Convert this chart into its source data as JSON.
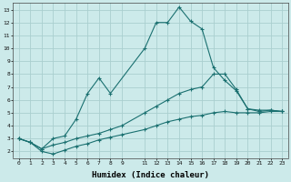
{
  "xlabel": "Humidex (Indice chaleur)",
  "xlim": [
    -0.5,
    23.5
  ],
  "ylim": [
    1.5,
    13.5
  ],
  "yticks": [
    2,
    3,
    4,
    5,
    6,
    7,
    8,
    9,
    10,
    11,
    12,
    13
  ],
  "xticks": [
    0,
    1,
    2,
    3,
    4,
    5,
    6,
    7,
    8,
    9,
    11,
    12,
    13,
    14,
    15,
    16,
    17,
    18,
    19,
    20,
    21,
    22,
    23
  ],
  "bg_color": "#cceaea",
  "grid_color": "#aacfcf",
  "line_color": "#1a7070",
  "line1_x": [
    0,
    1,
    2,
    3,
    4,
    5,
    6,
    7,
    8,
    11,
    12,
    13,
    14,
    15,
    16,
    17,
    18,
    19,
    20,
    21,
    22,
    23
  ],
  "line1_y": [
    3.0,
    2.7,
    2.2,
    3.0,
    3.2,
    4.5,
    6.5,
    7.7,
    6.5,
    10.0,
    12.0,
    12.0,
    13.2,
    12.1,
    11.5,
    8.5,
    7.5,
    6.7,
    5.3,
    5.2,
    5.2,
    5.1
  ],
  "line2_x": [
    0,
    1,
    2,
    3,
    4,
    5,
    6,
    7,
    8,
    9,
    11,
    12,
    13,
    14,
    15,
    16,
    17,
    18,
    19,
    20,
    21,
    22,
    23
  ],
  "line2_y": [
    3.0,
    2.7,
    2.2,
    2.5,
    2.7,
    3.0,
    3.2,
    3.4,
    3.7,
    4.0,
    5.0,
    5.5,
    6.0,
    6.5,
    6.8,
    7.0,
    8.0,
    8.0,
    6.8,
    5.3,
    5.1,
    5.2,
    5.1
  ],
  "line3_x": [
    0,
    1,
    2,
    3,
    4,
    5,
    6,
    7,
    8,
    9,
    11,
    12,
    13,
    14,
    15,
    16,
    17,
    18,
    19,
    20,
    21,
    22,
    23
  ],
  "line3_y": [
    3.0,
    2.7,
    2.0,
    1.8,
    2.1,
    2.4,
    2.6,
    2.9,
    3.1,
    3.3,
    3.7,
    4.0,
    4.3,
    4.5,
    4.7,
    4.8,
    5.0,
    5.1,
    5.0,
    5.0,
    5.0,
    5.1,
    5.1
  ]
}
